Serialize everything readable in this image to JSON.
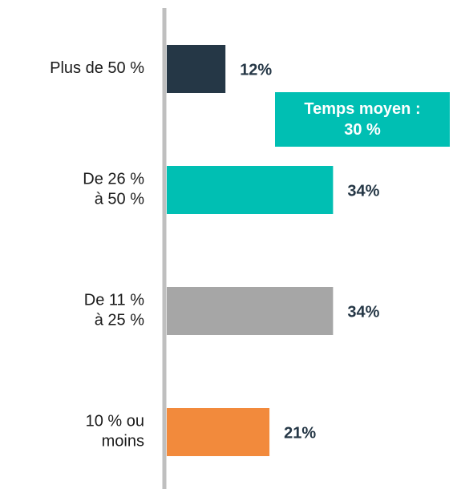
{
  "chart_data": {
    "type": "bar",
    "orientation": "horizontal",
    "categories": [
      "Plus de 50 %",
      "De 26 %\nà 50 %",
      "De 11 %\nà 25 %",
      "10 % ou\nmoins"
    ],
    "values": [
      12,
      34,
      34,
      21
    ],
    "value_labels": [
      "12%",
      "34%",
      "34%",
      "21%"
    ],
    "colors": [
      "#253746",
      "#00bfb3",
      "#a6a6a6",
      "#f28a3c"
    ],
    "annotation": "Temps moyen :\n30 %"
  }
}
